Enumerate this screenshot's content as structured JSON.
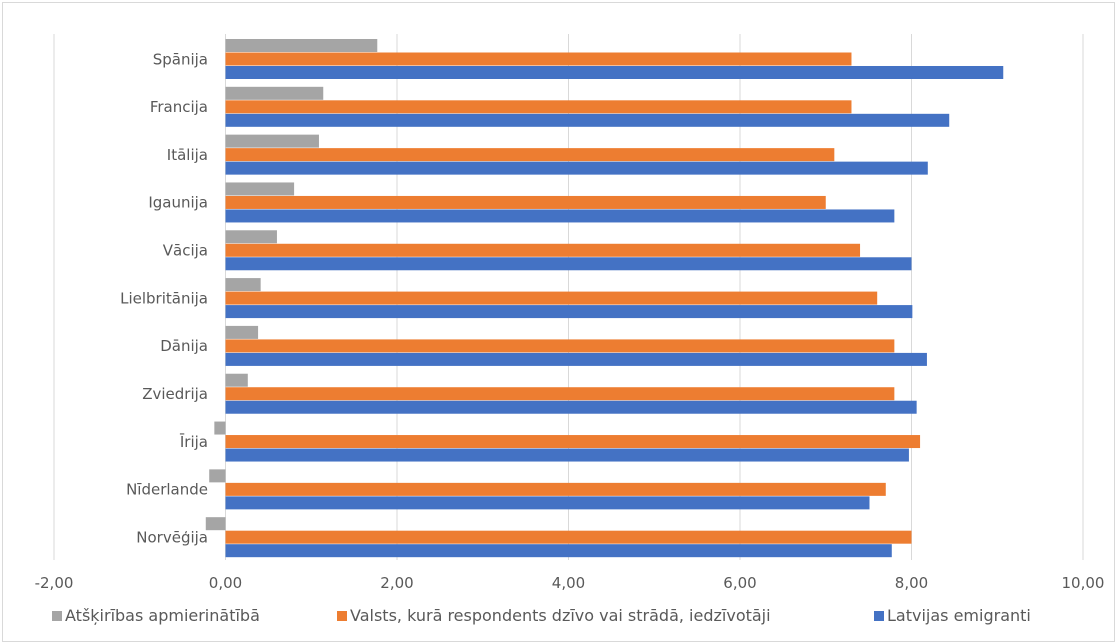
{
  "chart_data": {
    "type": "bar",
    "orientation": "horizontal",
    "categories": [
      "Spānija",
      "Francija",
      "Itālija",
      "Igaunija",
      "Vācija",
      "Lielbritānija",
      "Dānija",
      "Zviedrija",
      "Īrija",
      "Nīderlande",
      "Norvēģija"
    ],
    "series": [
      {
        "name": "Atšķirības apmierinātībā",
        "color": "#a5a5a5",
        "values": [
          1.77,
          1.14,
          1.09,
          0.8,
          0.6,
          0.41,
          0.38,
          0.26,
          -0.13,
          -0.19,
          -0.23
        ]
      },
      {
        "name": "Valsts, kurā respondents dzīvo vai strādā, iedzīvotāji",
        "color": "#ed7d31",
        "values": [
          7.3,
          7.3,
          7.1,
          7.0,
          7.4,
          7.6,
          7.8,
          7.8,
          8.1,
          7.7,
          8.0
        ]
      },
      {
        "name": "Latvijas emigranti",
        "color": "#4472c4",
        "values": [
          9.07,
          8.44,
          8.19,
          7.8,
          8.0,
          8.01,
          8.18,
          8.06,
          7.97,
          7.51,
          7.77
        ]
      }
    ],
    "xaxis": {
      "ticks": [
        -2,
        0,
        2,
        4,
        6,
        8,
        10
      ],
      "tick_labels": [
        "-2,00",
        "0,00",
        "2,00",
        "4,00",
        "6,00",
        "8,00",
        "10,00"
      ],
      "xlim": [
        -2,
        10
      ]
    },
    "grid": true,
    "legend_position": "bottom"
  }
}
